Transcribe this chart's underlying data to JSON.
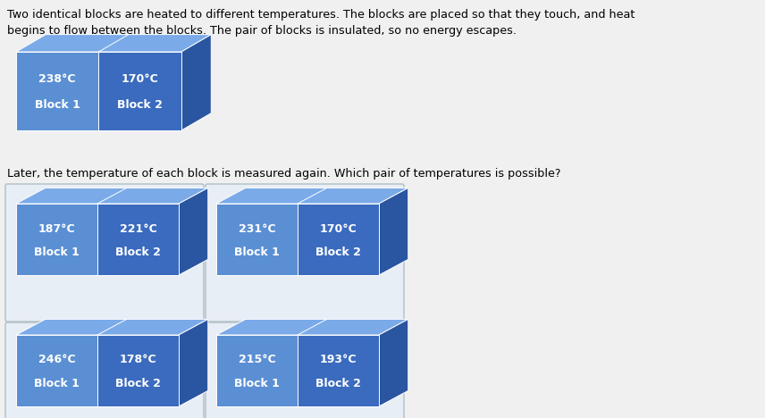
{
  "bg_color": "#f0f0f0",
  "white": "#ffffff",
  "text_paragraph_line1": "Two identical blocks are heated to different temperatures. The blocks are placed so that they touch, and heat",
  "text_paragraph_line2": "begins to flow between the blocks. The pair of blocks is insulated, so no energy escapes.",
  "question_text": "Later, the temperature of each block is measured again. Which pair of temperatures is possible?",
  "block_front_left": "#5b8fd4",
  "block_front_right": "#3a6bbf",
  "block_top": "#7aaae8",
  "block_right": "#2a55a0",
  "block_divider": "#ffffff",
  "text_color": "#ffffff",
  "box_bg": "#e8eef5",
  "box_border": "#b0bec5",
  "initial": {
    "temp1": "238°C",
    "label1": "Block 1",
    "temp2": "170°C",
    "label2": "Block 2"
  },
  "options": [
    {
      "temp1": "187°C",
      "label1": "Block 1",
      "temp2": "221°C",
      "label2": "Block 2"
    },
    {
      "temp1": "231°C",
      "label1": "Block 1",
      "temp2": "170°C",
      "label2": "Block 2"
    },
    {
      "temp1": "246°C",
      "label1": "Block 1",
      "temp2": "178°C",
      "label2": "Block 2"
    },
    {
      "temp1": "215°C",
      "label1": "Block 1",
      "temp2": "193°C",
      "label2": "Block 2"
    }
  ],
  "font_size_para": 9.2,
  "font_size_question": 9.2,
  "font_size_block_temp": 9.0,
  "font_size_block_label": 9.0
}
